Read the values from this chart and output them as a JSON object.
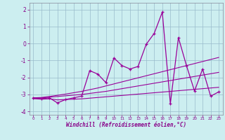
{
  "xlabel": "Windchill (Refroidissement éolien,°C)",
  "bg_color": "#cceef0",
  "grid_color": "#99bbcc",
  "line_color": "#990099",
  "x_data": [
    0,
    1,
    2,
    3,
    4,
    5,
    6,
    7,
    8,
    9,
    10,
    11,
    12,
    13,
    14,
    15,
    16,
    17,
    18,
    19,
    20,
    21,
    22,
    23
  ],
  "y_main": [
    -3.2,
    -3.25,
    -3.2,
    -3.5,
    -3.3,
    -3.2,
    -3.1,
    -1.6,
    -1.8,
    -2.3,
    -0.85,
    -1.3,
    -1.5,
    -1.35,
    -0.05,
    0.6,
    1.85,
    -3.55,
    0.35,
    -1.3,
    -2.8,
    -1.5,
    -3.1,
    -2.85
  ],
  "y_line1": [
    -3.2,
    -3.18,
    -3.12,
    -3.05,
    -2.98,
    -2.9,
    -2.82,
    -2.72,
    -2.62,
    -2.5,
    -2.38,
    -2.26,
    -2.14,
    -2.02,
    -1.9,
    -1.78,
    -1.66,
    -1.54,
    -1.42,
    -1.3,
    -1.18,
    -1.06,
    -0.94,
    -0.82
  ],
  "y_line2": [
    -3.22,
    -3.2,
    -3.16,
    -3.12,
    -3.08,
    -3.04,
    -3.0,
    -2.94,
    -2.88,
    -2.82,
    -2.74,
    -2.66,
    -2.58,
    -2.5,
    -2.42,
    -2.34,
    -2.26,
    -2.18,
    -2.1,
    -2.02,
    -1.94,
    -1.86,
    -1.78,
    -1.7
  ],
  "y_line3": [
    -3.25,
    -3.28,
    -3.26,
    -3.32,
    -3.3,
    -3.28,
    -3.26,
    -3.22,
    -3.18,
    -3.14,
    -3.1,
    -3.06,
    -3.02,
    -2.98,
    -2.94,
    -2.9,
    -2.86,
    -2.82,
    -2.78,
    -2.74,
    -2.7,
    -2.66,
    -2.62,
    -2.58
  ],
  "ylim": [
    -4.2,
    2.4
  ],
  "xlim": [
    -0.5,
    23.5
  ],
  "yticks": [
    -4,
    -3,
    -2,
    -1,
    0,
    1,
    2
  ]
}
